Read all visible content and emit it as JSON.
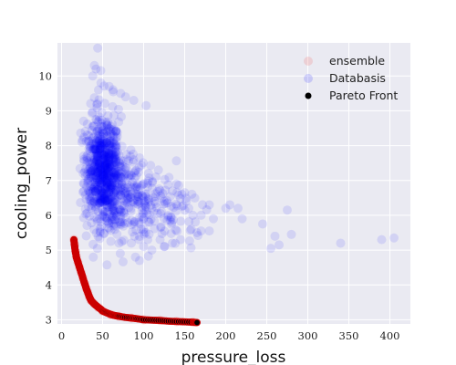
{
  "chart_data": {
    "type": "scatter",
    "title": "",
    "xlabel": "pressure_loss",
    "ylabel": "cooling_power",
    "xlim": [
      -5,
      425
    ],
    "ylim": [
      2.88,
      10.95
    ],
    "xticks": [
      0,
      50,
      100,
      150,
      200,
      250,
      300,
      350,
      400
    ],
    "yticks": [
      3,
      4,
      5,
      6,
      7,
      8,
      9,
      10
    ],
    "grid": true,
    "legend_position": "top-right",
    "colors": {
      "background": "#eaeaf2",
      "grid": "#ffffff",
      "ensemble": "#f08080",
      "database": "#0000ff",
      "pareto": "#000000",
      "pareto_edge": "#cc0000"
    },
    "series": [
      {
        "name": "ensemble",
        "marker": "circle",
        "points": [
          [
            15,
            5.3
          ],
          [
            16,
            5.15
          ],
          [
            17,
            4.95
          ],
          [
            18,
            4.8
          ],
          [
            20,
            4.65
          ],
          [
            22,
            4.5
          ],
          [
            24,
            4.35
          ],
          [
            26,
            4.2
          ],
          [
            28,
            4.05
          ],
          [
            30,
            3.9
          ],
          [
            32,
            3.78
          ],
          [
            34,
            3.65
          ],
          [
            36,
            3.55
          ],
          [
            40,
            3.45
          ],
          [
            45,
            3.35
          ],
          [
            50,
            3.25
          ],
          [
            60,
            3.15
          ],
          [
            70,
            3.1
          ],
          [
            85,
            3.05
          ],
          [
            100,
            3.0
          ],
          [
            120,
            2.98
          ],
          [
            140,
            2.95
          ],
          [
            160,
            2.93
          ]
        ]
      },
      {
        "name": "Databasis",
        "marker": "circle",
        "clusters": [
          {
            "cx": 50,
            "cy": 7.3,
            "sx": 11,
            "sy": 0.75,
            "n": 700
          },
          {
            "cx": 78,
            "cy": 6.6,
            "sx": 20,
            "sy": 0.6,
            "n": 220
          },
          {
            "cx": 110,
            "cy": 6.2,
            "sx": 28,
            "sy": 0.55,
            "n": 120
          }
        ],
        "points": [
          [
            44,
            10.8
          ],
          [
            40,
            10.3
          ],
          [
            42,
            10.2
          ],
          [
            38,
            10.0
          ],
          [
            48,
            9.8
          ],
          [
            45,
            9.6
          ],
          [
            58,
            9.7
          ],
          [
            72,
            9.5
          ],
          [
            78,
            9.4
          ],
          [
            88,
            9.3
          ],
          [
            103,
            9.15
          ],
          [
            115,
            7.1
          ],
          [
            118,
            7.3
          ],
          [
            125,
            6.4
          ],
          [
            135,
            6.7
          ],
          [
            150,
            6.65
          ],
          [
            152,
            6.4
          ],
          [
            155,
            6.2
          ],
          [
            158,
            5.6
          ],
          [
            165,
            5.5
          ],
          [
            170,
            5.55
          ],
          [
            180,
            5.55
          ],
          [
            185,
            5.9
          ],
          [
            200,
            6.2
          ],
          [
            205,
            6.3
          ],
          [
            215,
            6.2
          ],
          [
            220,
            5.9
          ],
          [
            245,
            5.75
          ],
          [
            255,
            5.05
          ],
          [
            260,
            5.4
          ],
          [
            265,
            5.15
          ],
          [
            275,
            6.15
          ],
          [
            280,
            5.45
          ],
          [
            340,
            5.2
          ],
          [
            390,
            5.3
          ],
          [
            405,
            5.35
          ],
          [
            125,
            5.1
          ],
          [
            135,
            5.2
          ],
          [
            145,
            5.3
          ],
          [
            110,
            5.0
          ],
          [
            120,
            5.3
          ],
          [
            95,
            4.7
          ],
          [
            100,
            5.1
          ],
          [
            105,
            5.3
          ],
          [
            90,
            4.8
          ],
          [
            85,
            5.2
          ],
          [
            170,
            6.0
          ],
          [
            180,
            6.3
          ],
          [
            160,
            6.0
          ],
          [
            130,
            6.0
          ],
          [
            140,
            6.9
          ],
          [
            100,
            5.6
          ],
          [
            60,
            5.25
          ],
          [
            70,
            5.2
          ]
        ]
      },
      {
        "name": "Pareto Front",
        "marker": "circle",
        "points": [
          [
            15,
            5.3
          ],
          [
            15.5,
            5.2
          ],
          [
            16,
            5.1
          ],
          [
            16.5,
            5.0
          ],
          [
            17,
            4.95
          ],
          [
            17.5,
            4.88
          ],
          [
            18,
            4.8
          ],
          [
            19,
            4.72
          ],
          [
            20,
            4.65
          ],
          [
            21,
            4.57
          ],
          [
            22,
            4.5
          ],
          [
            23,
            4.42
          ],
          [
            24,
            4.35
          ],
          [
            25,
            4.28
          ],
          [
            26,
            4.2
          ],
          [
            27,
            4.12
          ],
          [
            28,
            4.05
          ],
          [
            29,
            3.98
          ],
          [
            30,
            3.9
          ],
          [
            31,
            3.84
          ],
          [
            32,
            3.78
          ],
          [
            33,
            3.71
          ],
          [
            34,
            3.65
          ],
          [
            35,
            3.6
          ],
          [
            36,
            3.55
          ],
          [
            38,
            3.5
          ],
          [
            40,
            3.45
          ],
          [
            42,
            3.41
          ],
          [
            45,
            3.35
          ],
          [
            48,
            3.3
          ],
          [
            50,
            3.25
          ],
          [
            55,
            3.2
          ],
          [
            60,
            3.15
          ],
          [
            65,
            3.12
          ],
          [
            70,
            3.1
          ],
          [
            77,
            3.07
          ],
          [
            85,
            3.05
          ],
          [
            92,
            3.03
          ],
          [
            100,
            3.0
          ],
          [
            110,
            2.99
          ],
          [
            120,
            2.98
          ],
          [
            130,
            2.96
          ],
          [
            140,
            2.95
          ],
          [
            150,
            2.94
          ],
          [
            160,
            2.93
          ],
          [
            165,
            2.92
          ]
        ]
      }
    ]
  }
}
